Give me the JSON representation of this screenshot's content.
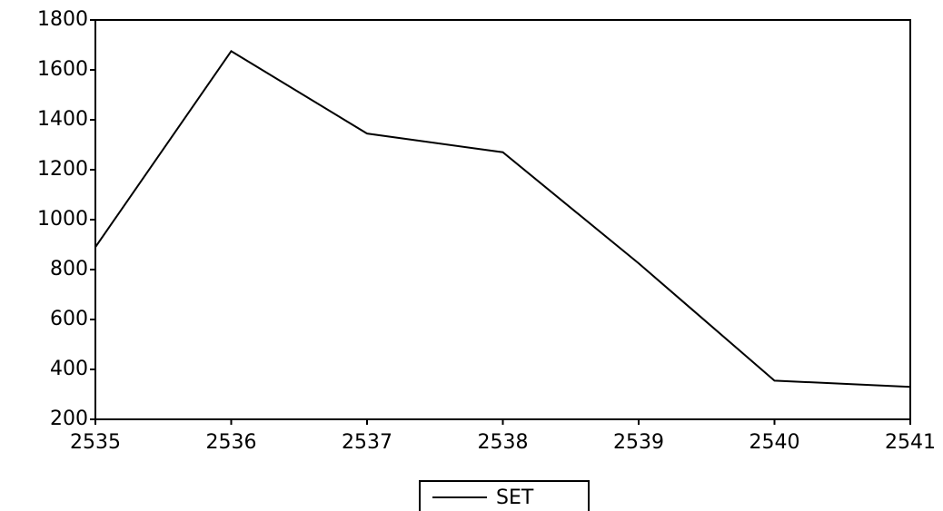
{
  "chart_data": {
    "type": "line",
    "x": [
      2535,
      2536,
      2537,
      2538,
      2539,
      2540,
      2541
    ],
    "series": [
      {
        "name": "SET",
        "color": "#000000",
        "values": [
          890,
          1675,
          1345,
          1270,
          825,
          355,
          330
        ]
      }
    ],
    "xlim": [
      2535,
      2541
    ],
    "xticks": [
      2535,
      2536,
      2537,
      2538,
      2539,
      2540,
      2541
    ],
    "ylim": [
      200,
      1800
    ],
    "yticks": [
      200,
      400,
      600,
      800,
      1000,
      1200,
      1400,
      1600,
      1800
    ],
    "legend": "bottom",
    "grid": false
  }
}
